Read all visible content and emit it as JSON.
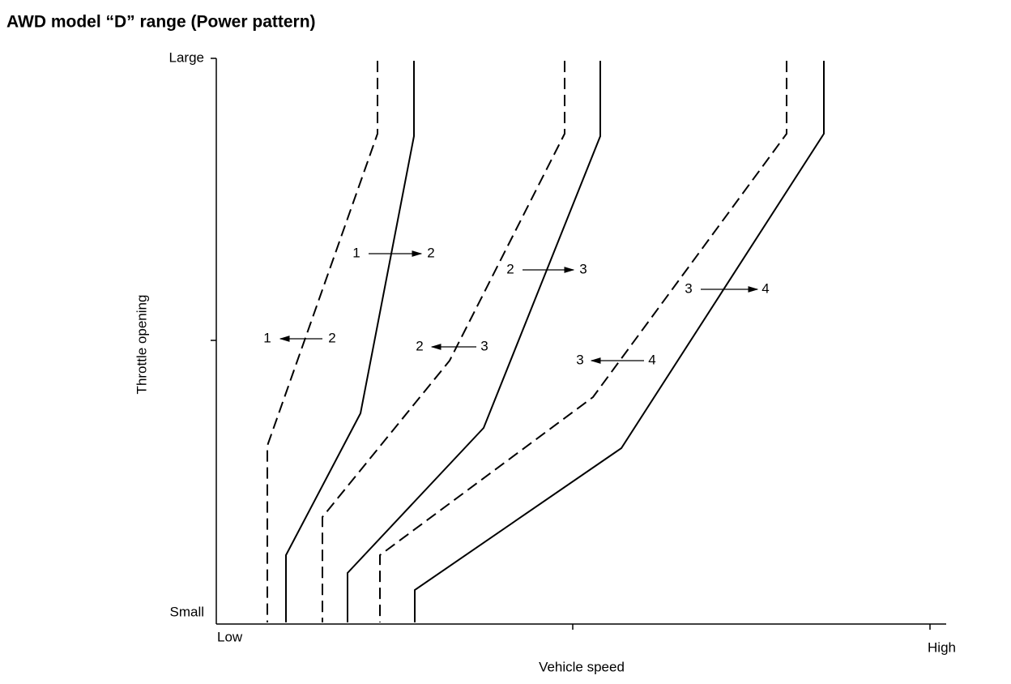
{
  "title": "AWD model “D” range (Power pattern)",
  "y_axis": {
    "label": "Throttle opening",
    "top": "Large",
    "bottom": "Small"
  },
  "x_axis": {
    "label": "Vehicle speed",
    "left": "Low",
    "right": "High"
  },
  "shifts": [
    {
      "from": "1",
      "to": "2"
    },
    {
      "from": "1",
      "to": "2"
    },
    {
      "from": "2",
      "to": "3"
    },
    {
      "from": "2",
      "to": "3"
    },
    {
      "from": "3",
      "to": "4"
    },
    {
      "from": "3",
      "to": "4"
    }
  ]
}
